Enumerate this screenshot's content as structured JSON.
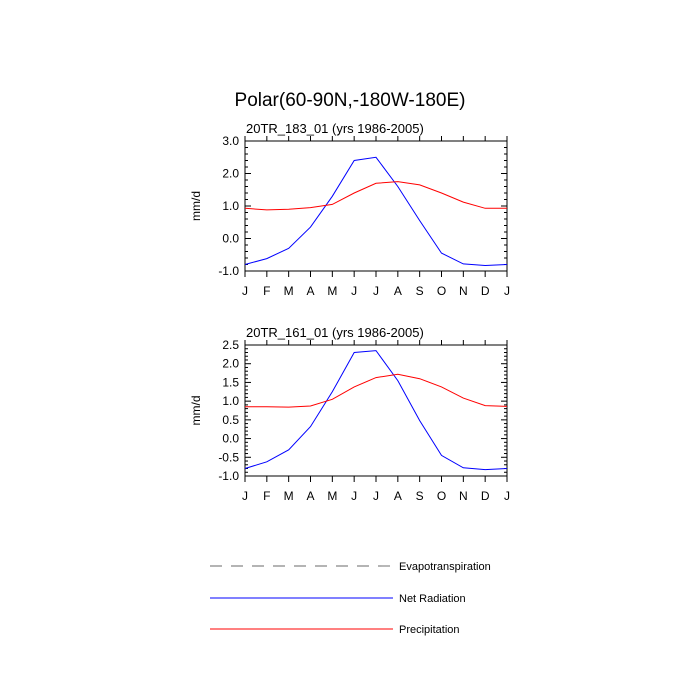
{
  "figure": {
    "title": "Polar(60-90N,-180W-180E)"
  },
  "chart_data": [
    {
      "type": "line",
      "title": "20TR_183_01 (yrs 1986-2005)",
      "ylabel": "mm/d",
      "xlabel": "",
      "categories": [
        "J",
        "F",
        "M",
        "A",
        "M",
        "J",
        "J",
        "A",
        "S",
        "O",
        "N",
        "D",
        "J"
      ],
      "yticks": [
        "3.0",
        "2.0",
        "1.0",
        "0.0",
        "-1.0"
      ],
      "ylim": [
        -1.0,
        3.0
      ],
      "series": [
        {
          "name": "Net Radiation",
          "color": "#0000ff",
          "values": [
            -0.8,
            -0.62,
            -0.3,
            0.35,
            1.3,
            2.4,
            2.5,
            1.6,
            0.55,
            -0.45,
            -0.78,
            -0.83,
            -0.8
          ]
        },
        {
          "name": "Precipitation",
          "color": "#ff0000",
          "values": [
            0.93,
            0.88,
            0.9,
            0.95,
            1.05,
            1.4,
            1.7,
            1.75,
            1.65,
            1.4,
            1.12,
            0.93,
            0.93
          ]
        }
      ]
    },
    {
      "type": "line",
      "title": "20TR_161_01 (yrs 1986-2005)",
      "ylabel": "mm/d",
      "xlabel": "",
      "categories": [
        "J",
        "F",
        "M",
        "A",
        "M",
        "J",
        "J",
        "A",
        "S",
        "O",
        "N",
        "D",
        "J"
      ],
      "yticks": [
        "2.5",
        "2.0",
        "1.5",
        "1.0",
        "0.5",
        "0.0",
        "-0.5",
        "-1.0"
      ],
      "ylim": [
        -1.0,
        2.5
      ],
      "series": [
        {
          "name": "Net Radiation",
          "color": "#0000ff",
          "values": [
            -0.8,
            -0.62,
            -0.3,
            0.32,
            1.25,
            2.3,
            2.35,
            1.55,
            0.48,
            -0.45,
            -0.78,
            -0.83,
            -0.8
          ]
        },
        {
          "name": "Precipitation",
          "color": "#ff0000",
          "values": [
            0.85,
            0.85,
            0.84,
            0.87,
            1.05,
            1.38,
            1.63,
            1.72,
            1.6,
            1.38,
            1.08,
            0.88,
            0.86
          ]
        }
      ]
    }
  ],
  "legend": {
    "items": [
      {
        "label": "Evapotranspiration",
        "color": "#888888",
        "style": "dashed"
      },
      {
        "label": "Net Radiation",
        "color": "#0000ff",
        "style": "solid"
      },
      {
        "label": "Precipitation",
        "color": "#ff0000",
        "style": "solid"
      }
    ]
  }
}
